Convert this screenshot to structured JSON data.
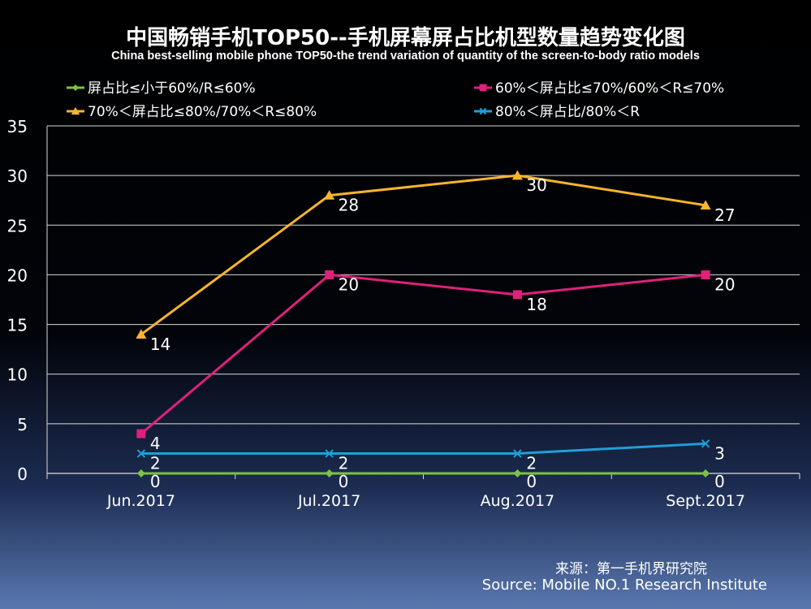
{
  "chart_data": {
    "type": "line",
    "title": "中国畅销手机TOP50--手机屏幕屏占比机型数量趋势变化图",
    "subtitle": "China best-selling mobile phone TOP50-the trend variation of quantity of the screen-to-body ratio models",
    "categories": [
      "Jun.2017",
      "Jul.2017",
      "Aug.2017",
      "Sept.2017"
    ],
    "ylim": [
      0,
      35
    ],
    "yticks": [
      0,
      5,
      10,
      15,
      20,
      25,
      30,
      35
    ],
    "series": [
      {
        "name": "屏占比≤小于60%/R≤60%",
        "values": [
          0,
          0,
          0,
          0
        ],
        "color": "#7dc242",
        "marker": "diamond"
      },
      {
        "name": "60%＜屏占比≤70%/60%＜R≤70%",
        "values": [
          4,
          20,
          18,
          20
        ],
        "color": "#e0207a",
        "marker": "square"
      },
      {
        "name": "70%＜屏占比≤80%/70%＜R≤80%",
        "values": [
          14,
          28,
          30,
          27
        ],
        "color": "#f7b52c",
        "marker": "triangle"
      },
      {
        "name": "80%＜屏占比/80%＜R",
        "values": [
          2,
          2,
          2,
          3
        ],
        "color": "#1ea0d8",
        "marker": "x"
      }
    ]
  },
  "source": {
    "cn": "来源：第一手机界研究院",
    "en": "Source: Mobile NO.1 Research Institute"
  }
}
